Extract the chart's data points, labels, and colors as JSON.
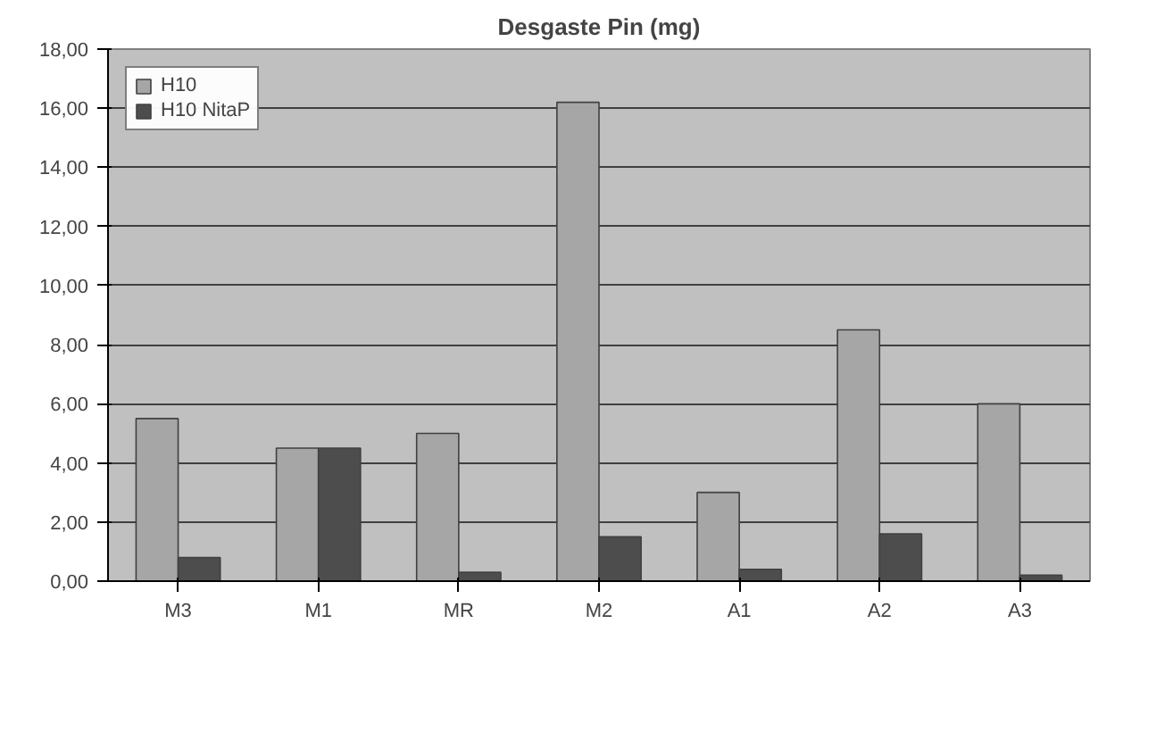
{
  "chart_data": {
    "type": "bar",
    "title": "Desgaste Pin (mg)",
    "categories": [
      "M3",
      "M1",
      "MR",
      "M2",
      "A1",
      "A2",
      "A3"
    ],
    "series": [
      {
        "name": "H10",
        "color": "#a6a6a6",
        "values": [
          5.5,
          4.5,
          5.0,
          16.2,
          3.0,
          8.5,
          6.0
        ]
      },
      {
        "name": "H10 NitaP",
        "color": "#4d4d4d",
        "values": [
          0.8,
          4.5,
          0.3,
          1.5,
          0.4,
          1.6,
          0.2
        ]
      }
    ],
    "ylim": [
      0,
      18
    ],
    "yticks": [
      {
        "value": 0,
        "label": "0,00"
      },
      {
        "value": 2,
        "label": "2,00"
      },
      {
        "value": 4,
        "label": "4,00"
      },
      {
        "value": 6,
        "label": "6,00"
      },
      {
        "value": 8,
        "label": "8,00"
      },
      {
        "value": 10,
        "label": "10,00"
      },
      {
        "value": 12,
        "label": "12,00"
      },
      {
        "value": 14,
        "label": "14,00"
      },
      {
        "value": 16,
        "label": "16,00"
      },
      {
        "value": 18,
        "label": "18,00"
      }
    ],
    "grid": "y",
    "legend": "top left"
  }
}
